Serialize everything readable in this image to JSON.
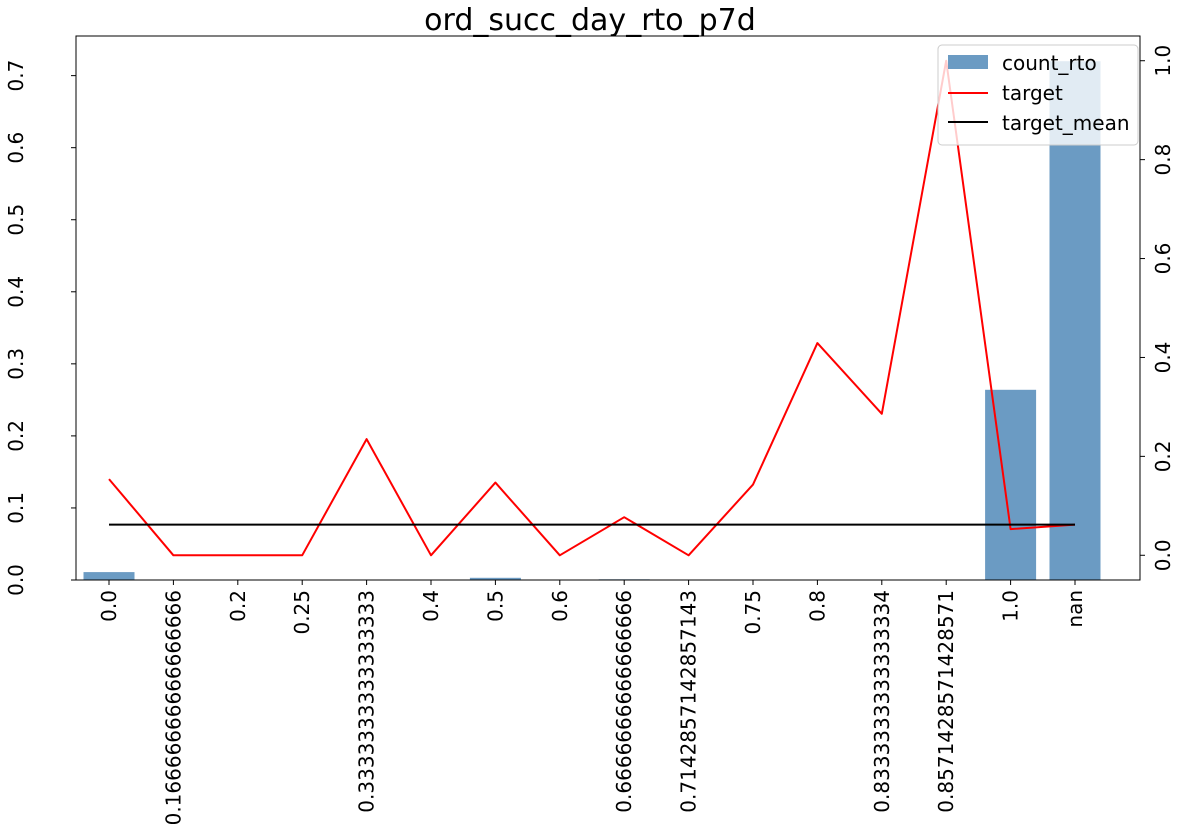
{
  "chart_data": {
    "type": "bar",
    "title": "ord_succ_day_rto_p7d",
    "xlabel": "",
    "ylabel": "",
    "categories": [
      "0.0",
      "0.16666666666666666",
      "0.2",
      "0.25",
      "0.3333333333333333",
      "0.4",
      "0.5",
      "0.6",
      "0.6666666666666666",
      "0.7142857142857143",
      "0.75",
      "0.8",
      "0.8333333333333334",
      "0.8571428571428571",
      "1.0",
      "nan"
    ],
    "left_axis": {
      "ylim": [
        0,
        0.755
      ],
      "ticks": [
        0.0,
        0.1,
        0.2,
        0.3,
        0.4,
        0.5,
        0.6,
        0.7
      ],
      "tick_labels": [
        "0.0",
        "0.1",
        "0.2",
        "0.3",
        "0.4",
        "0.5",
        "0.6",
        "0.7"
      ]
    },
    "right_axis": {
      "ylim": [
        -0.05,
        1.05
      ],
      "ticks": [
        0.0,
        0.2,
        0.4,
        0.6,
        0.8,
        1.0
      ],
      "tick_labels": [
        "0.0",
        "0.2",
        "0.4",
        "0.6",
        "0.8",
        "1.0"
      ]
    },
    "grid": false,
    "legend_placement": "top-right",
    "series": [
      {
        "name": "count_rto",
        "kind": "bar",
        "axis": "left",
        "color": "#4682b4",
        "values": [
          0.011,
          0.0,
          0.0,
          0.0,
          0.0,
          0.0,
          0.003,
          0.0,
          0.001,
          0.0,
          0.0,
          0.0,
          0.0,
          0.0,
          0.264,
          0.72
        ]
      },
      {
        "name": "target",
        "kind": "line",
        "axis": "right",
        "color": "#ff0000",
        "values": [
          0.154,
          0.0,
          0.0,
          0.0,
          0.235,
          0.0,
          0.147,
          0.0,
          0.077,
          0.0,
          0.143,
          0.429,
          0.286,
          1.0,
          0.053,
          0.062
        ]
      },
      {
        "name": "target_mean",
        "kind": "line",
        "axis": "right",
        "color": "#000000",
        "values": [
          0.062,
          0.062,
          0.062,
          0.062,
          0.062,
          0.062,
          0.062,
          0.062,
          0.062,
          0.062,
          0.062,
          0.062,
          0.062,
          0.062,
          0.062,
          0.062
        ]
      }
    ]
  }
}
